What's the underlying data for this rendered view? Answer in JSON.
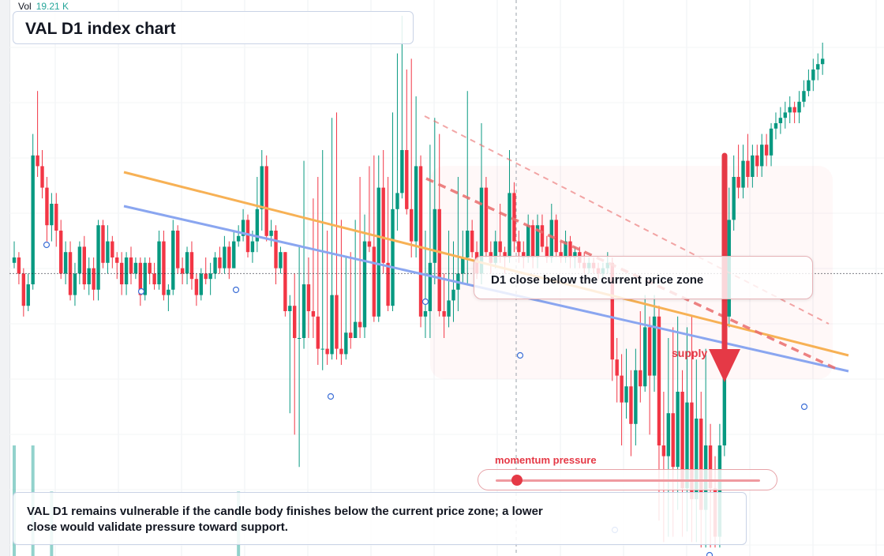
{
  "header": {
    "vol_label": "Vol",
    "vol_value": "19.21 K"
  },
  "title": "VAL D1 index chart",
  "callout": {
    "text": "D1 close below the current price zone"
  },
  "supply_label": "supply",
  "momentum": {
    "label": "momentum pressure",
    "level": 0.08
  },
  "note": "VAL D1 remains vulnerable if the candle body finishes below the current price zone; a lower close would validate pressure toward support.",
  "colors": {
    "up": "#089981",
    "down": "#f23645",
    "orange_trend": "#f7b155",
    "blue_trend": "#8aa6f0",
    "arrow": "#e53946",
    "dashed_channel": "#ea6d6d",
    "volume_up": "#26a69a",
    "volume_down": "#ef5350"
  },
  "chart_data": {
    "type": "candlestick",
    "timeframe": "D1",
    "symbol": "VAL",
    "price_range": [
      0,
      100
    ],
    "current_price_level": 52,
    "candles": [
      [
        54,
        55,
        58,
        53
      ],
      [
        55,
        52,
        56,
        50
      ],
      [
        52,
        46,
        53,
        44
      ],
      [
        46,
        50,
        52,
        45
      ],
      [
        50,
        74,
        78,
        49
      ],
      [
        74,
        72,
        86,
        70
      ],
      [
        72,
        68,
        75,
        66
      ],
      [
        68,
        61,
        70,
        58
      ],
      [
        61,
        65,
        67,
        58
      ],
      [
        65,
        60,
        67,
        57
      ],
      [
        60,
        52,
        62,
        51
      ],
      [
        52,
        56,
        58,
        50
      ],
      [
        56,
        48,
        58,
        47
      ],
      [
        48,
        52,
        54,
        46
      ],
      [
        52,
        57,
        58,
        50
      ],
      [
        57,
        50,
        59,
        49
      ],
      [
        50,
        53,
        55,
        48
      ],
      [
        53,
        49,
        55,
        47
      ],
      [
        49,
        61,
        62,
        47
      ],
      [
        61,
        54,
        62,
        53
      ],
      [
        54,
        58,
        61,
        52
      ],
      [
        58,
        55,
        59,
        53
      ],
      [
        55,
        54,
        56,
        51
      ],
      [
        54,
        50,
        56,
        48
      ],
      [
        50,
        55,
        56,
        48
      ],
      [
        55,
        52,
        57,
        50
      ],
      [
        52,
        54,
        55,
        51
      ],
      [
        54,
        48,
        55,
        46
      ],
      [
        48,
        54,
        55,
        47
      ],
      [
        54,
        52,
        55,
        50
      ],
      [
        52,
        50,
        54,
        49
      ],
      [
        50,
        58,
        60,
        49
      ],
      [
        58,
        48,
        60,
        47
      ],
      [
        48,
        49,
        50,
        45
      ],
      [
        49,
        60,
        62,
        48
      ],
      [
        60,
        53,
        61,
        52
      ],
      [
        53,
        52,
        55,
        50
      ],
      [
        52,
        56,
        57,
        50
      ],
      [
        56,
        51,
        58,
        49
      ],
      [
        51,
        48,
        52,
        46
      ],
      [
        48,
        52,
        53,
        47
      ],
      [
        52,
        51,
        55,
        50
      ],
      [
        51,
        52,
        54,
        48
      ],
      [
        52,
        55,
        56,
        51
      ],
      [
        55,
        53,
        57,
        52
      ],
      [
        53,
        57,
        59,
        52
      ],
      [
        57,
        53,
        58,
        51
      ],
      [
        53,
        58,
        60,
        53
      ],
      [
        58,
        59,
        61,
        57
      ],
      [
        59,
        62,
        64,
        58
      ],
      [
        62,
        56,
        63,
        55
      ],
      [
        56,
        58,
        60,
        54
      ],
      [
        58,
        64,
        70,
        56
      ],
      [
        64,
        72,
        75,
        60
      ],
      [
        72,
        59,
        74,
        58
      ],
      [
        59,
        60,
        62,
        57
      ],
      [
        60,
        53,
        61,
        50
      ],
      [
        53,
        56,
        57,
        52
      ],
      [
        56,
        45,
        56,
        44
      ],
      [
        45,
        46,
        48,
        26
      ],
      [
        46,
        40,
        52,
        22
      ],
      [
        40,
        40,
        57,
        16
      ],
      [
        40,
        50,
        73,
        38
      ],
      [
        50,
        45,
        55,
        40
      ],
      [
        45,
        44,
        66,
        40
      ],
      [
        44,
        38,
        70,
        35
      ],
      [
        38,
        38,
        75,
        34
      ],
      [
        38,
        37,
        60,
        35
      ],
      [
        37,
        48,
        81,
        36
      ],
      [
        48,
        38,
        82,
        36
      ],
      [
        38,
        37,
        62,
        35
      ],
      [
        37,
        41,
        55,
        36
      ],
      [
        41,
        40,
        56,
        38
      ],
      [
        40,
        43,
        62,
        40
      ],
      [
        43,
        42,
        70,
        40
      ],
      [
        42,
        58,
        63,
        40
      ],
      [
        58,
        57,
        72,
        56
      ],
      [
        57,
        44,
        74,
        43
      ],
      [
        44,
        68,
        74,
        43
      ],
      [
        68,
        54,
        75,
        52
      ],
      [
        54,
        46,
        70,
        45
      ],
      [
        46,
        64,
        82,
        45
      ],
      [
        64,
        67,
        93,
        60
      ],
      [
        67,
        75,
        100,
        66
      ],
      [
        75,
        64,
        90,
        63
      ],
      [
        64,
        58,
        92,
        55
      ],
      [
        58,
        72,
        85,
        55
      ],
      [
        72,
        44,
        74,
        42
      ],
      [
        44,
        45,
        60,
        40
      ],
      [
        45,
        54,
        76,
        40
      ],
      [
        54,
        64,
        81,
        50
      ],
      [
        64,
        45,
        78,
        44
      ],
      [
        45,
        44,
        52,
        40
      ],
      [
        44,
        47,
        60,
        42
      ],
      [
        47,
        49,
        58,
        43
      ],
      [
        49,
        52,
        70,
        45
      ],
      [
        52,
        55,
        60,
        50
      ],
      [
        55,
        60,
        86,
        50
      ],
      [
        60,
        56,
        62,
        55
      ],
      [
        56,
        52,
        58,
        51
      ],
      [
        52,
        68,
        80,
        50
      ],
      [
        68,
        56,
        70,
        55
      ],
      [
        56,
        54,
        58,
        52
      ],
      [
        54,
        58,
        60,
        53
      ],
      [
        58,
        56,
        65,
        54
      ],
      [
        56,
        55,
        57,
        52
      ],
      [
        55,
        67,
        75,
        54
      ],
      [
        67,
        58,
        69,
        56
      ],
      [
        58,
        56,
        60,
        54
      ],
      [
        56,
        55,
        58,
        53
      ],
      [
        55,
        61,
        63,
        54
      ],
      [
        61,
        55,
        62,
        53
      ],
      [
        55,
        61,
        63,
        53
      ],
      [
        61,
        57,
        63,
        56
      ],
      [
        57,
        55,
        59,
        54
      ],
      [
        55,
        62,
        65,
        54
      ],
      [
        62,
        56,
        63,
        55
      ],
      [
        56,
        55,
        58,
        54
      ],
      [
        55,
        58,
        60,
        54
      ],
      [
        58,
        55,
        59,
        53
      ],
      [
        55,
        56,
        57,
        53
      ],
      [
        56,
        54,
        57,
        53
      ],
      [
        54,
        53,
        56,
        52
      ],
      [
        53,
        54,
        55,
        52
      ],
      [
        54,
        53,
        55,
        52
      ],
      [
        53,
        52,
        54,
        51
      ],
      [
        52,
        53,
        54,
        51
      ],
      [
        53,
        54,
        56,
        52
      ],
      [
        54,
        36,
        55,
        32
      ],
      [
        36,
        33,
        40,
        28
      ],
      [
        33,
        28,
        37,
        20
      ],
      [
        28,
        31,
        38,
        25
      ],
      [
        31,
        24,
        34,
        18
      ],
      [
        24,
        34,
        38,
        20
      ],
      [
        34,
        31,
        45,
        28
      ],
      [
        31,
        42,
        48,
        30
      ],
      [
        42,
        33,
        44,
        22
      ],
      [
        33,
        44,
        48,
        30
      ],
      [
        44,
        20,
        46,
        6
      ],
      [
        20,
        18,
        30,
        2
      ],
      [
        18,
        26,
        40,
        3
      ],
      [
        26,
        16,
        42,
        3
      ],
      [
        16,
        30,
        44,
        8
      ],
      [
        30,
        12,
        34,
        3
      ],
      [
        12,
        28,
        42,
        4
      ],
      [
        28,
        10,
        44,
        2
      ],
      [
        10,
        25,
        36,
        2
      ],
      [
        25,
        8,
        30,
        1
      ],
      [
        8,
        20,
        38,
        1
      ],
      [
        20,
        12,
        24,
        1
      ],
      [
        12,
        3,
        18,
        1
      ],
      [
        3,
        20,
        24,
        1
      ],
      [
        20,
        44,
        60,
        18
      ],
      [
        44,
        62,
        68,
        42
      ],
      [
        62,
        70,
        74,
        60
      ],
      [
        70,
        68,
        76,
        66
      ],
      [
        68,
        73,
        76,
        66
      ],
      [
        73,
        70,
        78,
        68
      ],
      [
        70,
        74,
        76,
        68
      ],
      [
        74,
        72,
        76,
        70
      ],
      [
        72,
        76,
        78,
        70
      ],
      [
        76,
        74,
        78,
        72
      ],
      [
        74,
        79,
        80,
        72
      ],
      [
        79,
        80,
        82,
        77
      ],
      [
        80,
        81,
        83,
        78
      ],
      [
        81,
        82,
        84,
        79
      ],
      [
        82,
        83,
        85,
        80
      ],
      [
        83,
        82,
        84,
        80
      ],
      [
        82,
        84,
        86,
        80
      ],
      [
        84,
        86,
        88,
        83
      ],
      [
        86,
        88,
        90,
        85
      ],
      [
        88,
        90,
        92,
        86
      ],
      [
        90,
        91,
        93,
        88
      ],
      [
        91,
        92,
        95,
        89
      ]
    ],
    "volume": [
      24,
      0,
      0,
      0,
      24,
      0,
      0,
      0,
      14,
      0,
      0,
      0,
      0,
      0,
      0,
      0,
      0,
      0,
      0,
      0,
      0,
      0,
      0,
      0,
      0,
      0,
      0,
      0,
      0,
      0,
      0,
      0,
      0,
      0,
      0,
      0,
      0,
      0,
      0,
      0,
      0,
      0,
      0,
      0,
      0,
      0,
      0,
      0,
      14,
      0,
      0,
      0,
      0,
      0,
      0,
      0,
      0,
      0,
      0,
      0,
      0,
      0,
      0,
      0,
      0,
      0,
      0,
      0,
      0,
      0,
      0,
      0,
      0,
      0,
      0,
      0,
      0,
      0,
      0,
      0,
      0,
      0,
      0,
      0,
      0,
      0,
      0,
      0,
      0,
      0,
      0,
      0,
      0,
      0,
      0,
      0,
      0,
      0,
      0,
      0,
      0,
      0,
      0,
      0,
      0,
      0,
      0,
      0,
      0,
      0,
      0,
      0,
      0,
      0,
      0,
      0,
      0,
      0,
      0,
      0,
      0,
      0,
      0,
      0,
      0,
      0,
      0,
      0,
      0,
      0,
      0,
      0,
      0,
      0,
      0,
      0,
      0,
      0,
      0,
      0,
      0,
      0,
      0,
      0,
      0,
      0,
      0,
      0,
      0,
      0,
      0,
      0,
      0,
      0,
      0,
      0,
      0,
      0,
      0,
      0,
      0,
      0
    ]
  }
}
